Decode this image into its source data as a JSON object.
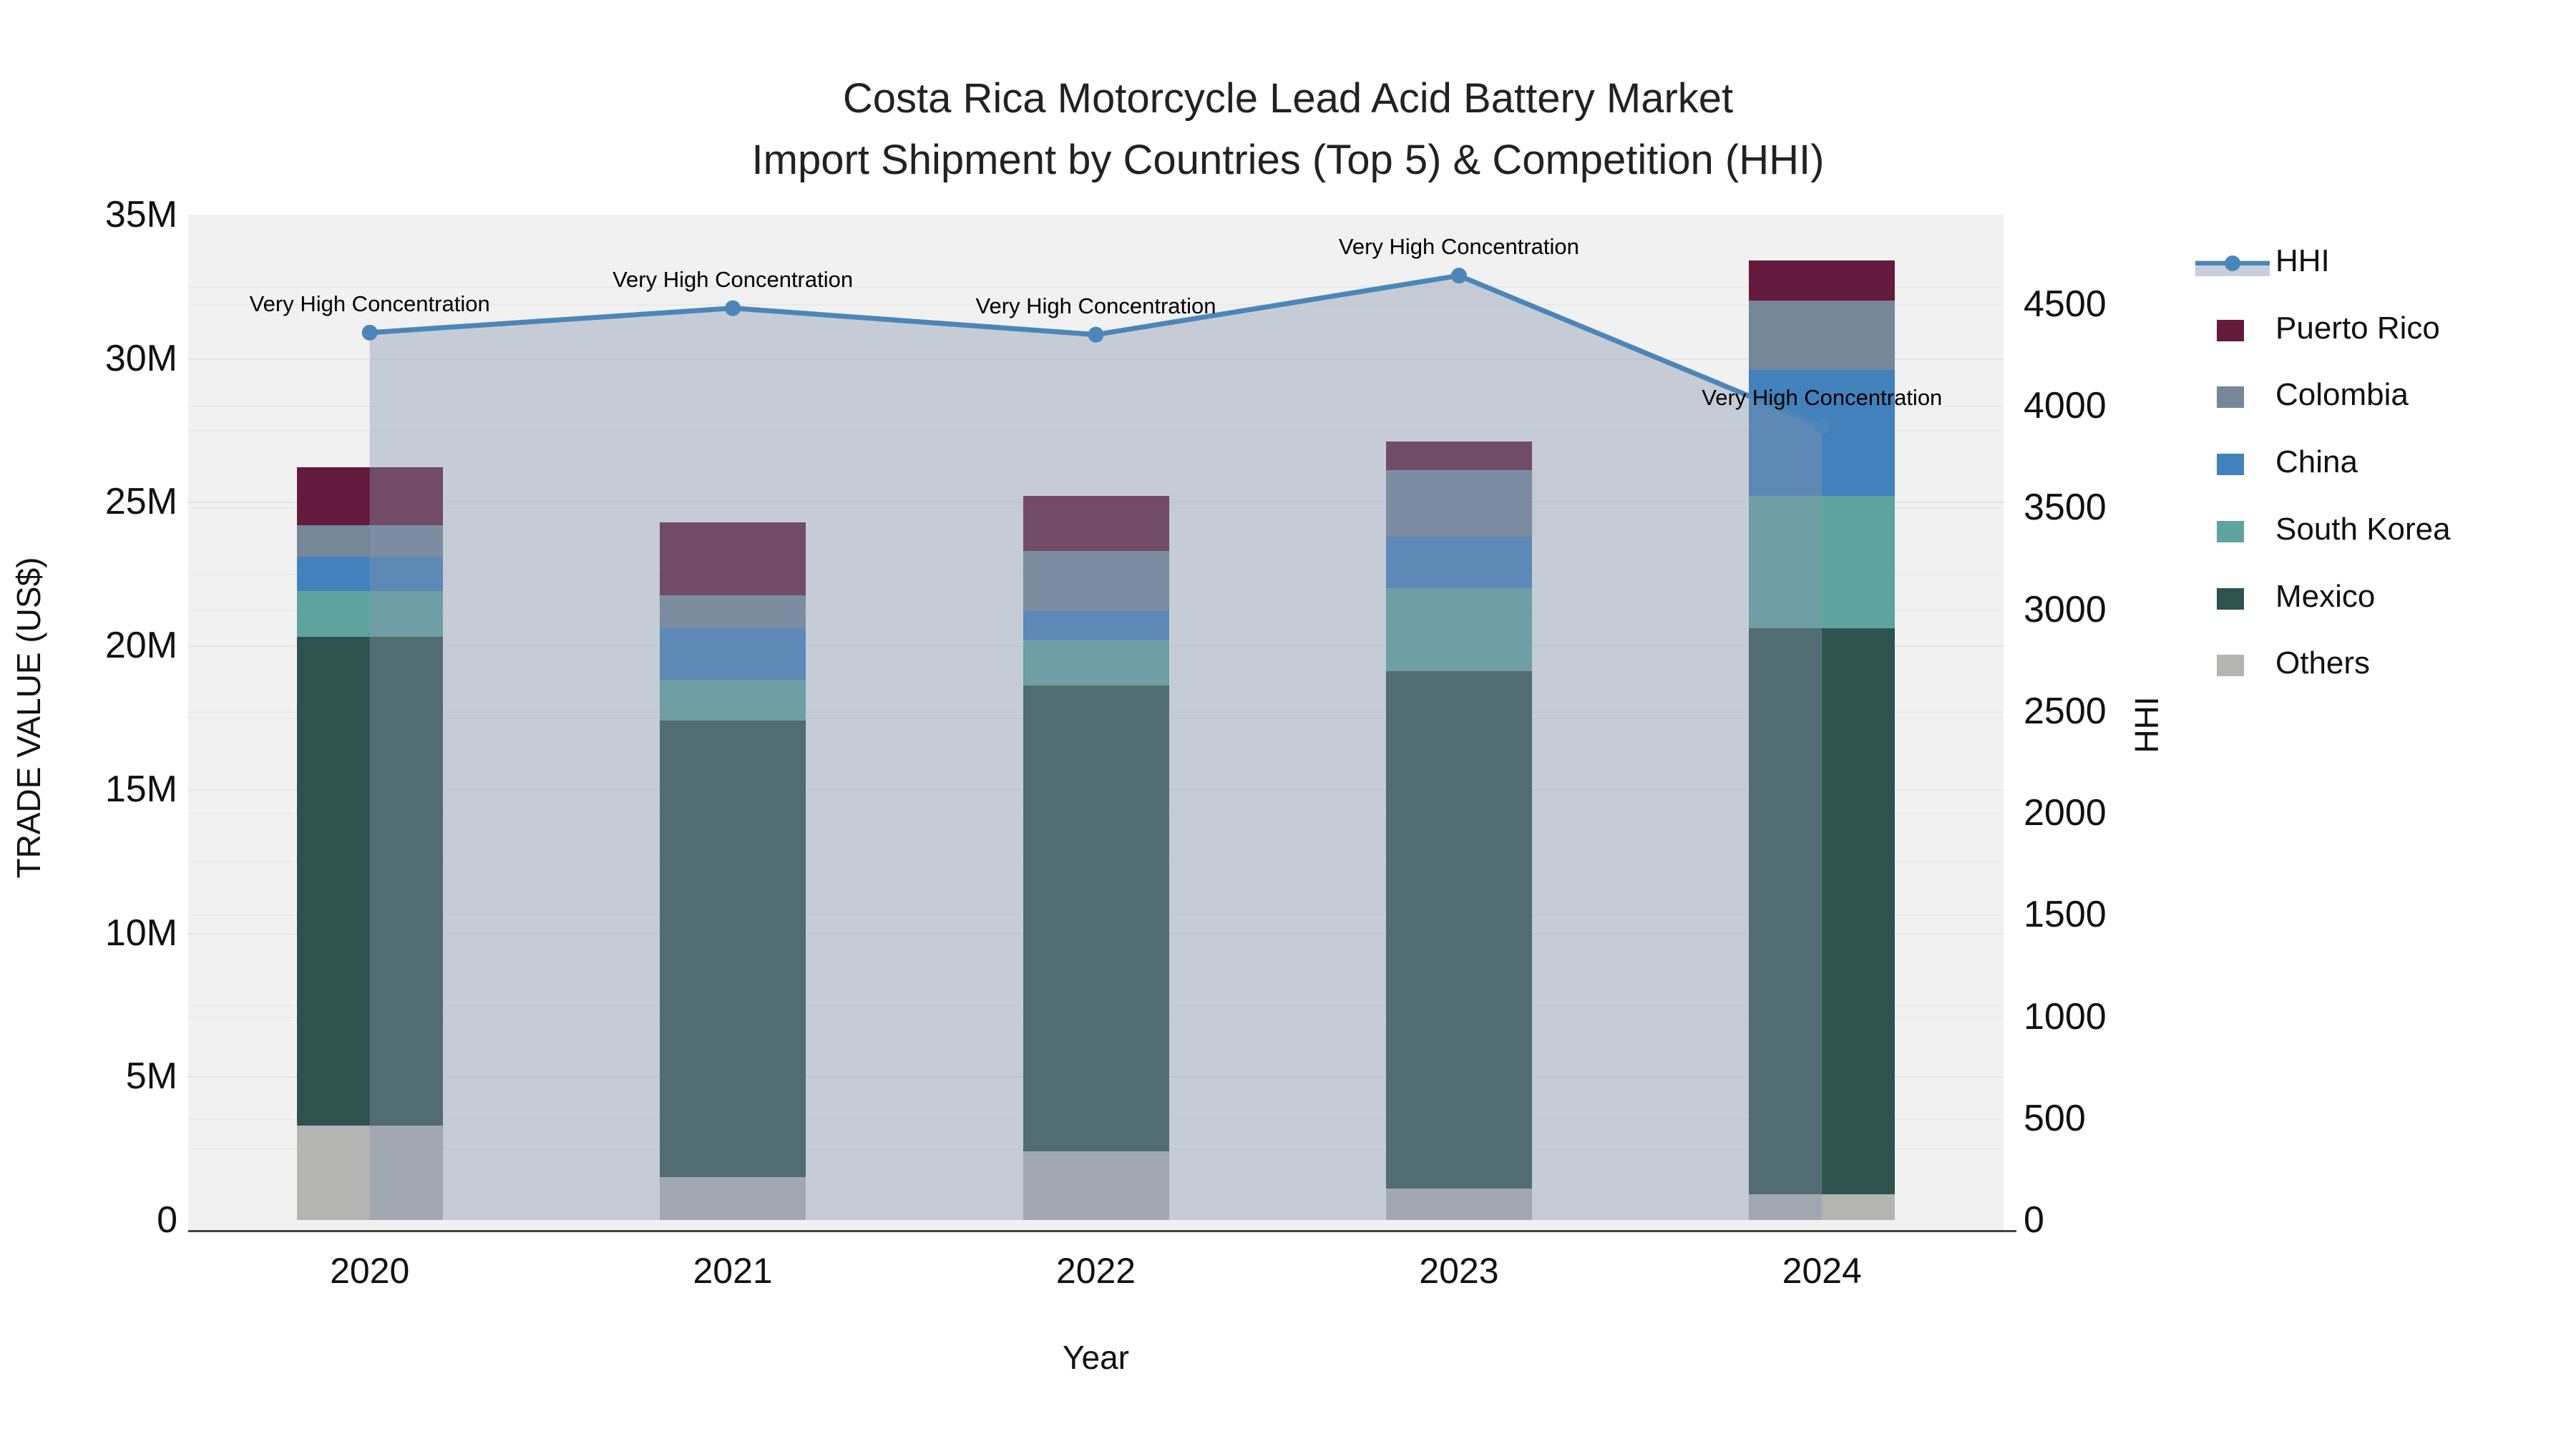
{
  "title": {
    "line1": "Costa Rica Motorcycle Lead Acid Battery Market",
    "line2": "Import Shipment by Countries (Top 5) & Competition (HHI)"
  },
  "axes": {
    "left": {
      "title": "TRADE VALUE (US$)",
      "ticks": [
        "0",
        "5M",
        "10M",
        "15M",
        "20M",
        "25M",
        "30M",
        "35M"
      ],
      "tick_values_m": [
        0,
        5,
        10,
        15,
        20,
        25,
        30,
        35
      ],
      "max_m": 35
    },
    "right": {
      "title": "HHI",
      "ticks": [
        "0",
        "500",
        "1000",
        "1500",
        "2000",
        "2500",
        "3000",
        "3500",
        "4000",
        "4500"
      ],
      "tick_values": [
        0,
        500,
        1000,
        1500,
        2000,
        2500,
        3000,
        3500,
        4000,
        4500
      ]
    },
    "x": {
      "title": "Year"
    }
  },
  "legend": {
    "items": [
      {
        "label": "HHI",
        "type": "line",
        "color": "#4c86b8",
        "band_color": "#c6cfda"
      },
      {
        "label": "Puerto Rico",
        "type": "swatch",
        "color": "#641a3c"
      },
      {
        "label": "Colombia",
        "type": "swatch",
        "color": "#76879a"
      },
      {
        "label": "China",
        "type": "swatch",
        "color": "#4381bc"
      },
      {
        "label": "South Korea",
        "type": "swatch",
        "color": "#5fa39e"
      },
      {
        "label": "Mexico",
        "type": "swatch",
        "color": "#2e534e"
      },
      {
        "label": "Others",
        "type": "swatch",
        "color": "#b4b5b2"
      }
    ]
  },
  "colors": {
    "plot_background": "#f1f1f1",
    "hhi_line": "#4c86b8",
    "hhi_area_fill": "rgba(135,149,173,0.40)",
    "axis_line": "#444444"
  },
  "chart_data": {
    "type": "combo: stacked bar (left axis, trade value US$) + line with shaded area (right axis, HHI)",
    "categories": [
      "2020",
      "2021",
      "2022",
      "2023",
      "2024"
    ],
    "bar_value_unit": "million US$",
    "series": [
      {
        "name": "Others",
        "color": "#b4b5b2",
        "values": [
          3.3,
          1.5,
          2.4,
          1.1,
          0.9
        ]
      },
      {
        "name": "Mexico",
        "color": "#2e534e",
        "values": [
          17.0,
          15.9,
          16.2,
          18.0,
          19.7
        ]
      },
      {
        "name": "South Korea",
        "color": "#5fa39e",
        "values": [
          1.6,
          1.4,
          1.6,
          2.9,
          4.6
        ]
      },
      {
        "name": "China",
        "color": "#4381bc",
        "values": [
          1.2,
          1.8,
          1.0,
          1.8,
          4.4
        ]
      },
      {
        "name": "Colombia",
        "color": "#76879a",
        "values": [
          1.1,
          1.15,
          2.1,
          2.3,
          2.4
        ]
      },
      {
        "name": "Puerto Rico",
        "color": "#641a3c",
        "values": [
          2.0,
          2.55,
          1.9,
          1.0,
          1.4
        ]
      }
    ],
    "bar_totals_m": [
      26.2,
      24.3,
      25.2,
      27.1,
      33.4
    ],
    "line_series": {
      "name": "HHI",
      "values": [
        4360,
        4480,
        4350,
        4640,
        3900
      ],
      "annotations": [
        "Very High Concentration",
        "Very High Concentration",
        "Very High Concentration",
        "Very High Concentration",
        "Very High Concentration"
      ]
    },
    "ylim_left_m": [
      0,
      35
    ],
    "ylim_right": [
      0,
      4940
    ],
    "legend_position": "right",
    "grid": "horizontal gridlines, minor every 2.5M and right-axis every 500"
  }
}
